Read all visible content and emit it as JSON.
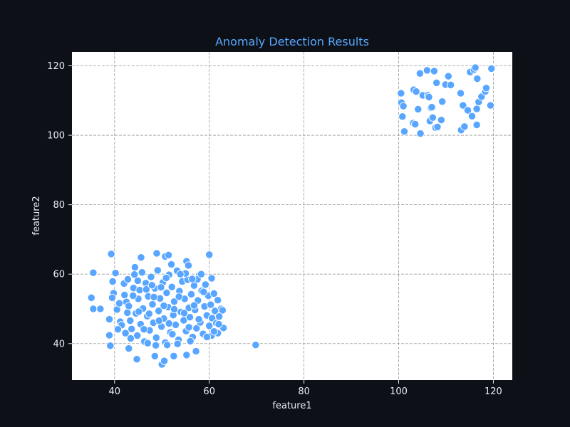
{
  "chart_data": {
    "type": "scatter",
    "title": "Anomaly Detection Results",
    "xlabel": "feature1",
    "ylabel": "feature2",
    "xlim": [
      31,
      124
    ],
    "ylim": [
      29.5,
      124
    ],
    "x_ticks": [
      40,
      60,
      80,
      100,
      120
    ],
    "y_ticks": [
      40,
      60,
      80,
      100,
      120
    ],
    "grid": true,
    "point_color": "#58a6ff",
    "series": [
      {
        "points": [
          [
            35.5,
            60.4
          ],
          [
            39.3,
            65.8
          ],
          [
            40.2,
            60.3
          ],
          [
            45.6,
            64.8
          ],
          [
            48.9,
            66.0
          ],
          [
            50.7,
            65.1
          ],
          [
            51.4,
            65.5
          ],
          [
            55.2,
            63.7
          ],
          [
            60.0,
            65.6
          ],
          [
            44.3,
            62.0
          ],
          [
            52.0,
            62.8
          ],
          [
            55.6,
            62.5
          ],
          [
            35.1,
            53.2
          ],
          [
            35.5,
            50.0
          ],
          [
            37.0,
            50.0
          ],
          [
            38.9,
            47.0
          ],
          [
            38.9,
            42.4
          ],
          [
            39.1,
            39.4
          ],
          [
            43.0,
            38.6
          ],
          [
            44.7,
            35.5
          ],
          [
            48.5,
            36.4
          ],
          [
            50.0,
            34.0
          ],
          [
            50.5,
            35.0
          ],
          [
            52.5,
            36.4
          ],
          [
            55.2,
            36.7
          ],
          [
            57.2,
            37.8
          ],
          [
            69.8,
            39.6
          ],
          [
            60.5,
            58.8
          ],
          [
            62.5,
            50.0
          ],
          [
            62.8,
            49.6
          ],
          [
            63.0,
            44.5
          ],
          [
            61.8,
            43.0
          ],
          [
            60.5,
            42.3
          ],
          [
            39.6,
            57.9
          ],
          [
            39.8,
            54.5
          ],
          [
            39.5,
            53.2
          ],
          [
            40.5,
            49.8
          ],
          [
            41.2,
            46.3
          ],
          [
            42.0,
            57.3
          ],
          [
            42.1,
            54.0
          ],
          [
            42.5,
            52.0
          ],
          [
            42.8,
            58.5
          ],
          [
            43.0,
            50.8
          ],
          [
            43.3,
            46.6
          ],
          [
            43.6,
            44.2
          ],
          [
            44.0,
            56.0
          ],
          [
            44.2,
            59.9
          ],
          [
            44.5,
            48.7
          ],
          [
            44.8,
            42.3
          ],
          [
            45.0,
            52.9
          ],
          [
            45.3,
            55.4
          ],
          [
            45.5,
            45.6
          ],
          [
            45.8,
            60.5
          ],
          [
            46.0,
            50.1
          ],
          [
            46.3,
            40.6
          ],
          [
            46.6,
            57.4
          ],
          [
            46.9,
            47.9
          ],
          [
            47.1,
            53.6
          ],
          [
            47.4,
            43.8
          ],
          [
            47.7,
            59.2
          ],
          [
            48.0,
            51.3
          ],
          [
            48.2,
            46.0
          ],
          [
            48.5,
            55.9
          ],
          [
            48.8,
            41.7
          ],
          [
            49.1,
            61.1
          ],
          [
            49.3,
            49.4
          ],
          [
            49.6,
            53.0
          ],
          [
            49.9,
            44.9
          ],
          [
            50.2,
            57.6
          ],
          [
            50.4,
            47.2
          ],
          [
            50.7,
            40.3
          ],
          [
            51.0,
            54.6
          ],
          [
            51.3,
            50.5
          ],
          [
            51.5,
            59.8
          ],
          [
            51.8,
            43.2
          ],
          [
            52.1,
            56.3
          ],
          [
            52.4,
            48.2
          ],
          [
            52.6,
            52.1
          ],
          [
            52.9,
            45.4
          ],
          [
            53.2,
            61.0
          ],
          [
            53.5,
            41.1
          ],
          [
            53.7,
            55.1
          ],
          [
            54.0,
            49.1
          ],
          [
            54.3,
            57.9
          ],
          [
            54.6,
            46.7
          ],
          [
            54.8,
            52.9
          ],
          [
            55.1,
            43.6
          ],
          [
            55.4,
            58.4
          ],
          [
            55.7,
            50.3
          ],
          [
            55.9,
            47.6
          ],
          [
            56.2,
            54.2
          ],
          [
            56.5,
            41.9
          ],
          [
            56.8,
            56.7
          ],
          [
            57.0,
            49.7
          ],
          [
            57.3,
            44.4
          ],
          [
            57.6,
            52.4
          ],
          [
            57.9,
            59.7
          ],
          [
            58.1,
            46.1
          ],
          [
            58.4,
            55.2
          ],
          [
            58.7,
            42.8
          ],
          [
            59.0,
            50.7
          ],
          [
            59.2,
            57.0
          ],
          [
            59.5,
            48.1
          ],
          [
            59.8,
            53.8
          ],
          [
            60.0,
            45.1
          ],
          [
            60.3,
            51.2
          ],
          [
            60.6,
            47.3
          ],
          [
            61.0,
            54.4
          ],
          [
            61.2,
            49.4
          ],
          [
            61.5,
            45.9
          ],
          [
            61.8,
            52.5
          ],
          [
            62.1,
            47.8
          ],
          [
            41.5,
            45.3
          ],
          [
            42.7,
            48.9
          ],
          [
            43.9,
            53.8
          ],
          [
            45.1,
            49.2
          ],
          [
            46.2,
            44.1
          ],
          [
            47.3,
            48.6
          ],
          [
            48.3,
            53.4
          ],
          [
            49.4,
            46.6
          ],
          [
            50.4,
            50.9
          ],
          [
            51.5,
            45.8
          ],
          [
            52.6,
            49.9
          ],
          [
            53.6,
            53.5
          ],
          [
            54.7,
            48.8
          ],
          [
            55.7,
            44.7
          ],
          [
            56.8,
            51.0
          ],
          [
            57.8,
            47.0
          ],
          [
            58.8,
            54.9
          ],
          [
            41.0,
            51.6
          ],
          [
            43.4,
            41.5
          ],
          [
            46.7,
            55.6
          ],
          [
            49.8,
            56.2
          ],
          [
            52.2,
            42.7
          ],
          [
            55.0,
            60.2
          ],
          [
            57.5,
            58.5
          ],
          [
            44.9,
            58.1
          ],
          [
            47.9,
            56.8
          ],
          [
            50.9,
            58.9
          ],
          [
            53.9,
            60.0
          ],
          [
            56.4,
            58.6
          ],
          [
            58.3,
            60.0
          ],
          [
            40.7,
            44.1
          ],
          [
            42.3,
            43.0
          ],
          [
            47.0,
            40.1
          ],
          [
            48.7,
            39.5
          ],
          [
            51.1,
            39.6
          ],
          [
            53.3,
            39.9
          ],
          [
            56.0,
            40.7
          ],
          [
            59.5,
            41.9
          ],
          [
            61.0,
            43.5
          ],
          [
            62.0,
            45.6
          ],
          [
            100.5,
            112.1
          ],
          [
            100.6,
            109.4
          ],
          [
            100.8,
            105.4
          ],
          [
            101.0,
            108.4
          ],
          [
            101.2,
            101.1
          ],
          [
            103.1,
            103.5
          ],
          [
            103.2,
            113.1
          ],
          [
            103.5,
            103.2
          ],
          [
            103.7,
            112.6
          ],
          [
            104.1,
            107.5
          ],
          [
            104.5,
            117.8
          ],
          [
            104.6,
            100.5
          ],
          [
            105.1,
            111.5
          ],
          [
            106.0,
            118.7
          ],
          [
            106.2,
            111.5
          ],
          [
            106.4,
            111.0
          ],
          [
            106.6,
            104.1
          ],
          [
            106.8,
            107.9
          ],
          [
            107.0,
            108.1
          ],
          [
            107.2,
            105.1
          ],
          [
            107.5,
            118.5
          ],
          [
            107.8,
            102.2
          ],
          [
            108.0,
            115.1
          ],
          [
            108.2,
            102.4
          ],
          [
            109.0,
            104.4
          ],
          [
            109.2,
            109.7
          ],
          [
            109.9,
            114.6
          ],
          [
            110.5,
            117.0
          ],
          [
            111.0,
            114.5
          ],
          [
            113.1,
            112.1
          ],
          [
            113.2,
            101.5
          ],
          [
            113.6,
            108.6
          ],
          [
            113.9,
            102.5
          ],
          [
            114.6,
            107.2
          ],
          [
            115.1,
            118.2
          ],
          [
            115.5,
            105.5
          ],
          [
            115.9,
            118.9
          ],
          [
            116.2,
            119.5
          ],
          [
            116.5,
            103.0
          ],
          [
            116.5,
            107.6
          ],
          [
            116.6,
            116.3
          ],
          [
            116.9,
            109.6
          ],
          [
            117.5,
            111.1
          ],
          [
            118.3,
            112.6
          ],
          [
            118.5,
            113.6
          ],
          [
            119.4,
            108.6
          ],
          [
            119.6,
            119.2
          ]
        ]
      }
    ]
  }
}
